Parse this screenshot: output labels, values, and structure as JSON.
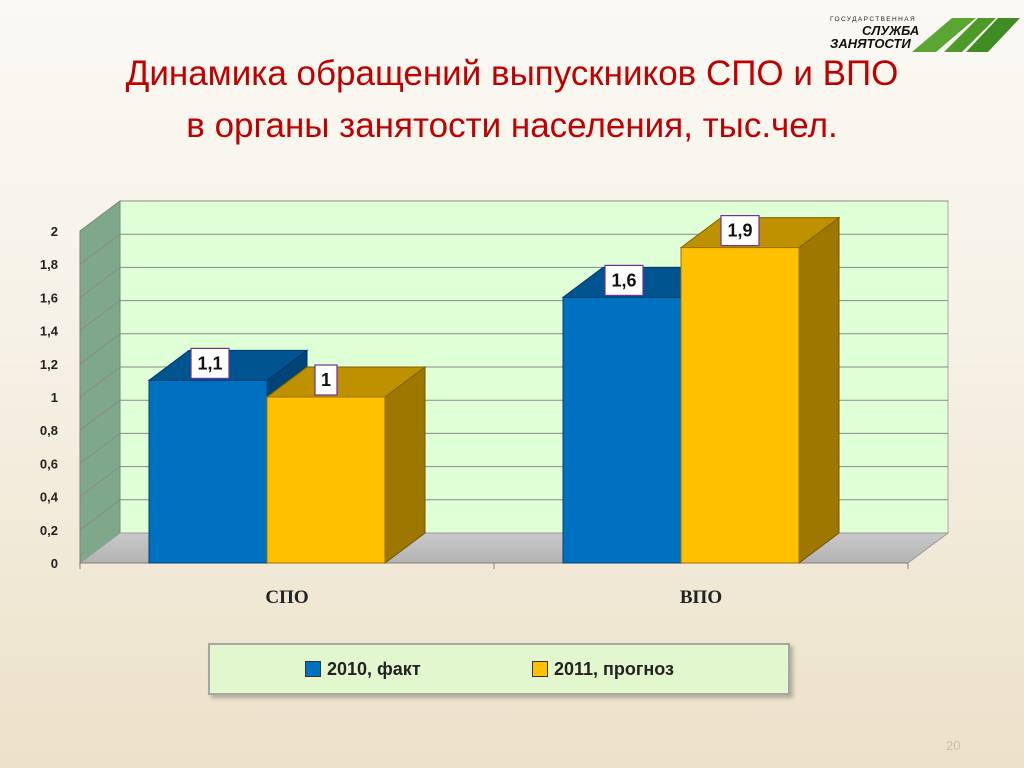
{
  "slide": {
    "title_line1": "Динамика обращений выпускников СПО и ВПО",
    "title_line2": "в органы занятости населения, тыс.чел.",
    "page_number": "20"
  },
  "logo": {
    "line1": "ГОСУДАРСТВЕННАЯ",
    "line2": "СЛУЖБА",
    "line3": "ЗАНЯТОСТИ"
  },
  "colors": {
    "series_2010": "#0070c0",
    "series_2011": "#ffc000",
    "title": "#c00000",
    "plot_background": "#dfffd7",
    "legend_background": "#e3f7cf"
  },
  "chart_data": {
    "type": "bar",
    "categories": [
      "СПО",
      "ВПО"
    ],
    "series": [
      {
        "name": "2010, факт",
        "values": [
          1.1,
          1.6
        ],
        "labels": [
          "1,1",
          "1,6"
        ]
      },
      {
        "name": "2011, прогноз",
        "values": [
          1.0,
          1.9
        ],
        "labels": [
          "1",
          "1,9"
        ]
      }
    ],
    "ylim": [
      0,
      2
    ],
    "yticks": [
      0,
      0.2,
      0.4,
      0.6,
      0.8,
      1.0,
      1.2,
      1.4,
      1.6,
      1.8,
      2.0
    ],
    "ytick_labels": [
      "0",
      "0,2",
      "0,4",
      "0,6",
      "0,8",
      "1",
      "1,2",
      "1,4",
      "1,6",
      "1,8",
      "2"
    ],
    "grid": true,
    "legend_position": "bottom",
    "style": "3d-clustered-column"
  }
}
